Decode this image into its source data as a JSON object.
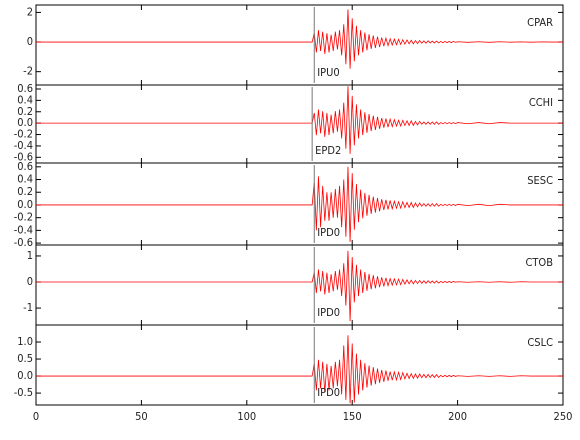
{
  "chart_data": [
    {
      "type": "line",
      "label": "CPAR",
      "pick": 132,
      "pick_label": "IPU0",
      "color": "#ff0000",
      "xlim": [
        0,
        250
      ],
      "xticks": [
        0,
        50,
        100,
        150,
        200,
        250
      ],
      "ylim": [
        -2.9,
        2.5
      ],
      "yticks": [
        -2,
        0,
        2
      ],
      "x": [
        0,
        130,
        131,
        132,
        133,
        134,
        135,
        136,
        137,
        138,
        139,
        140,
        141,
        142,
        143,
        144,
        145,
        146,
        147,
        148,
        149,
        150,
        151,
        152,
        153,
        154,
        155,
        156,
        157,
        158,
        159,
        160,
        161,
        162,
        163,
        164,
        165,
        166,
        167,
        168,
        169,
        170,
        171,
        172,
        173,
        174,
        175,
        176,
        177,
        178,
        179,
        180,
        181,
        182,
        183,
        184,
        185,
        186,
        187,
        188,
        189,
        190,
        191,
        192,
        193,
        194,
        195,
        196,
        197,
        198,
        199,
        200,
        205,
        210,
        215,
        220,
        225,
        230,
        235,
        240,
        245,
        250
      ],
      "values": [
        0,
        0,
        0,
        0.6,
        -0.7,
        0.8,
        -0.6,
        0.7,
        -0.8,
        0.6,
        -0.7,
        0.5,
        -0.6,
        0.7,
        -0.5,
        0.8,
        -0.9,
        1.2,
        -1.5,
        2.2,
        -1.8,
        1.6,
        -1.3,
        1.1,
        -0.9,
        0.8,
        -0.7,
        0.64,
        -0.56,
        0.52,
        -0.46,
        0.44,
        -0.4,
        0.36,
        -0.34,
        0.3,
        -0.28,
        0.26,
        -0.24,
        0.22,
        -0.2,
        0.2,
        -0.18,
        0.18,
        -0.16,
        0.16,
        -0.14,
        0.14,
        -0.12,
        0.12,
        -0.12,
        0.1,
        -0.1,
        0.1,
        -0.08,
        0.08,
        -0.08,
        0.08,
        -0.06,
        0.06,
        -0.06,
        0.06,
        -0.06,
        0.04,
        -0.04,
        0.04,
        -0.04,
        0.04,
        -0.04,
        0.04,
        -0.02,
        0.02,
        -0.02,
        0.02,
        -0.02,
        0.02,
        -0.01,
        0.01,
        -0.01,
        0.01,
        0,
        0
      ]
    },
    {
      "type": "line",
      "label": "CCHI",
      "pick": 131,
      "pick_label": "EPD2",
      "color": "#ff0000",
      "xlim": [
        0,
        250
      ],
      "xticks": [
        0,
        50,
        100,
        150,
        200,
        250
      ],
      "ylim": [
        -0.7,
        0.67
      ],
      "yticks": [
        -0.6,
        -0.4,
        -0.2,
        {
          "value": 0,
          "label": "0.0"
        },
        0.2,
        0.4,
        0.6
      ],
      "x": [
        0,
        130,
        131,
        132,
        133,
        134,
        135,
        136,
        137,
        138,
        139,
        140,
        141,
        142,
        143,
        144,
        145,
        146,
        147,
        148,
        149,
        150,
        151,
        152,
        153,
        154,
        155,
        156,
        157,
        158,
        159,
        160,
        161,
        162,
        163,
        164,
        165,
        166,
        167,
        168,
        169,
        170,
        171,
        172,
        173,
        174,
        175,
        176,
        177,
        178,
        179,
        180,
        181,
        182,
        183,
        184,
        185,
        186,
        187,
        188,
        189,
        190,
        191,
        192,
        193,
        194,
        195,
        196,
        197,
        198,
        199,
        200,
        205,
        210,
        215,
        220,
        225,
        230,
        235,
        240,
        245,
        250
      ],
      "values": [
        0,
        0,
        0,
        0.18,
        -0.21,
        0.24,
        -0.18,
        0.21,
        -0.24,
        0.18,
        -0.21,
        0.15,
        -0.18,
        0.21,
        -0.15,
        0.24,
        -0.27,
        0.36,
        -0.45,
        0.65,
        -0.54,
        0.48,
        -0.39,
        0.33,
        -0.27,
        0.24,
        -0.21,
        0.19,
        -0.17,
        0.16,
        -0.14,
        0.13,
        -0.12,
        0.11,
        -0.1,
        0.09,
        -0.08,
        0.08,
        -0.07,
        0.07,
        -0.06,
        0.06,
        -0.05,
        0.05,
        -0.05,
        0.05,
        -0.04,
        0.04,
        -0.04,
        0.04,
        -0.04,
        0.03,
        -0.03,
        0.03,
        -0.02,
        0.02,
        -0.02,
        0.02,
        -0.02,
        0.02,
        -0.02,
        0.02,
        -0.02,
        0.01,
        -0.01,
        0.01,
        -0.01,
        0.01,
        -0.01,
        0.01,
        -0.01,
        0.01,
        -0.01,
        0.01,
        -0.01,
        0.01,
        0,
        0,
        0,
        0,
        0,
        0
      ]
    },
    {
      "type": "line",
      "label": "SESC",
      "pick": 132,
      "pick_label": "IPD0",
      "color": "#ff0000",
      "xlim": [
        0,
        250
      ],
      "xticks": [
        0,
        50,
        100,
        150,
        200,
        250
      ],
      "ylim": [
        -0.63,
        0.66
      ],
      "yticks": [
        -0.6,
        -0.4,
        -0.2,
        {
          "value": 0,
          "label": "0.0"
        },
        0.2,
        0.4,
        0.6
      ],
      "x": [
        0,
        130,
        131,
        132,
        133,
        134,
        135,
        136,
        137,
        138,
        139,
        140,
        141,
        142,
        143,
        144,
        145,
        146,
        147,
        148,
        149,
        150,
        151,
        152,
        153,
        154,
        155,
        156,
        157,
        158,
        159,
        160,
        161,
        162,
        163,
        164,
        165,
        166,
        167,
        168,
        169,
        170,
        171,
        172,
        173,
        174,
        175,
        176,
        177,
        178,
        179,
        180,
        181,
        182,
        183,
        184,
        185,
        186,
        187,
        188,
        189,
        190,
        191,
        192,
        193,
        194,
        195,
        196,
        197,
        198,
        199,
        200,
        205,
        210,
        215,
        220,
        225,
        230,
        235,
        240,
        245,
        250
      ],
      "values": [
        0,
        0,
        0,
        0.35,
        -0.4,
        0.45,
        -0.35,
        0.3,
        -0.25,
        0.2,
        -0.25,
        0.2,
        -0.2,
        0.25,
        -0.2,
        0.3,
        -0.35,
        0.4,
        -0.5,
        0.6,
        -0.58,
        0.5,
        -0.39,
        0.33,
        -0.27,
        0.24,
        -0.21,
        0.19,
        -0.17,
        0.16,
        -0.14,
        0.13,
        -0.12,
        0.11,
        -0.1,
        0.09,
        -0.08,
        0.08,
        -0.07,
        0.07,
        -0.06,
        0.06,
        -0.05,
        0.05,
        -0.05,
        0.05,
        -0.04,
        0.04,
        -0.04,
        0.04,
        -0.04,
        0.03,
        -0.03,
        0.03,
        -0.02,
        0.02,
        -0.02,
        0.02,
        -0.02,
        0.02,
        -0.02,
        0.02,
        -0.02,
        0.01,
        -0.01,
        0.01,
        -0.01,
        0.01,
        -0.01,
        0.01,
        -0.01,
        0.01,
        -0.01,
        0.01,
        -0.01,
        0.01,
        0,
        0,
        0,
        0,
        0,
        0
      ]
    },
    {
      "type": "line",
      "label": "CTOB",
      "pick": 132,
      "pick_label": "IPD0",
      "color": "#ff0000",
      "xlim": [
        0,
        250
      ],
      "xticks": [
        0,
        50,
        100,
        150,
        200,
        250
      ],
      "ylim": [
        -1.65,
        1.42
      ],
      "yticks": [
        -1,
        0,
        1
      ],
      "x": [
        0,
        130,
        131,
        132,
        133,
        134,
        135,
        136,
        137,
        138,
        139,
        140,
        141,
        142,
        143,
        144,
        145,
        146,
        147,
        148,
        149,
        150,
        151,
        152,
        153,
        154,
        155,
        156,
        157,
        158,
        159,
        160,
        161,
        162,
        163,
        164,
        165,
        166,
        167,
        168,
        169,
        170,
        171,
        172,
        173,
        174,
        175,
        176,
        177,
        178,
        179,
        180,
        181,
        182,
        183,
        184,
        185,
        186,
        187,
        188,
        189,
        190,
        191,
        192,
        193,
        194,
        195,
        196,
        197,
        198,
        199,
        200,
        205,
        210,
        215,
        220,
        225,
        230,
        235,
        240,
        245,
        250
      ],
      "values": [
        0,
        0,
        0,
        0.36,
        -0.42,
        0.48,
        -0.36,
        0.42,
        -0.48,
        0.36,
        -0.42,
        0.3,
        -0.36,
        0.42,
        -0.3,
        0.48,
        -0.54,
        0.72,
        -0.9,
        1.2,
        -1.5,
        0.96,
        -0.78,
        0.66,
        -0.54,
        0.48,
        -0.42,
        0.38,
        -0.34,
        0.31,
        -0.28,
        0.26,
        -0.24,
        0.22,
        -0.2,
        0.18,
        -0.17,
        0.16,
        -0.14,
        0.13,
        -0.12,
        0.12,
        -0.11,
        0.11,
        -0.1,
        0.1,
        -0.08,
        0.08,
        -0.07,
        0.07,
        -0.07,
        0.06,
        -0.06,
        0.06,
        -0.05,
        0.05,
        -0.05,
        0.05,
        -0.04,
        0.04,
        -0.04,
        0.04,
        -0.04,
        0.02,
        -0.02,
        0.02,
        -0.02,
        0.02,
        -0.02,
        0.02,
        -0.01,
        0.01,
        -0.01,
        0.01,
        -0.01,
        0.01,
        -0.01,
        0.01,
        0,
        0,
        0,
        0
      ]
    },
    {
      "type": "line",
      "label": "CSLC",
      "pick": 132,
      "pick_label": "IPD0",
      "color": "#ff0000",
      "xlim": [
        0,
        250
      ],
      "xticks": [
        0,
        50,
        100,
        150,
        200,
        250
      ],
      "ylim": [
        -0.85,
        1.5
      ],
      "yticks": [
        -0.5,
        {
          "value": 0,
          "label": "0.0"
        },
        0.5,
        {
          "value": 1,
          "label": "1.0"
        }
      ],
      "x": [
        0,
        130,
        131,
        132,
        133,
        134,
        135,
        136,
        137,
        138,
        139,
        140,
        141,
        142,
        143,
        144,
        145,
        146,
        147,
        148,
        149,
        150,
        151,
        152,
        153,
        154,
        155,
        156,
        157,
        158,
        159,
        160,
        161,
        162,
        163,
        164,
        165,
        166,
        167,
        168,
        169,
        170,
        171,
        172,
        173,
        174,
        175,
        176,
        177,
        178,
        179,
        180,
        181,
        182,
        183,
        184,
        185,
        186,
        187,
        188,
        189,
        190,
        191,
        192,
        193,
        194,
        195,
        196,
        197,
        198,
        199,
        200,
        205,
        210,
        215,
        220,
        225,
        230,
        235,
        240,
        245,
        250
      ],
      "values": [
        0,
        0,
        0,
        0.36,
        -0.42,
        0.48,
        -0.36,
        0.42,
        -0.48,
        0.36,
        -0.42,
        0.3,
        -0.36,
        0.42,
        -0.3,
        0.48,
        -0.54,
        0.9,
        -0.7,
        1.2,
        -0.8,
        0.96,
        -0.78,
        0.66,
        -0.54,
        0.48,
        -0.42,
        0.38,
        -0.34,
        0.31,
        -0.28,
        0.26,
        -0.24,
        0.22,
        -0.2,
        0.18,
        -0.17,
        0.16,
        -0.14,
        0.13,
        -0.12,
        0.12,
        -0.11,
        0.11,
        -0.1,
        0.1,
        -0.08,
        0.08,
        -0.07,
        0.07,
        -0.07,
        0.06,
        -0.06,
        0.06,
        -0.05,
        0.05,
        -0.05,
        0.05,
        -0.04,
        0.04,
        -0.04,
        0.04,
        -0.04,
        0.02,
        -0.02,
        0.02,
        -0.02,
        0.02,
        -0.02,
        0.02,
        -0.01,
        0.01,
        -0.01,
        0.01,
        -0.01,
        0.01,
        -0.01,
        0.01,
        0,
        0,
        0,
        0
      ]
    }
  ]
}
